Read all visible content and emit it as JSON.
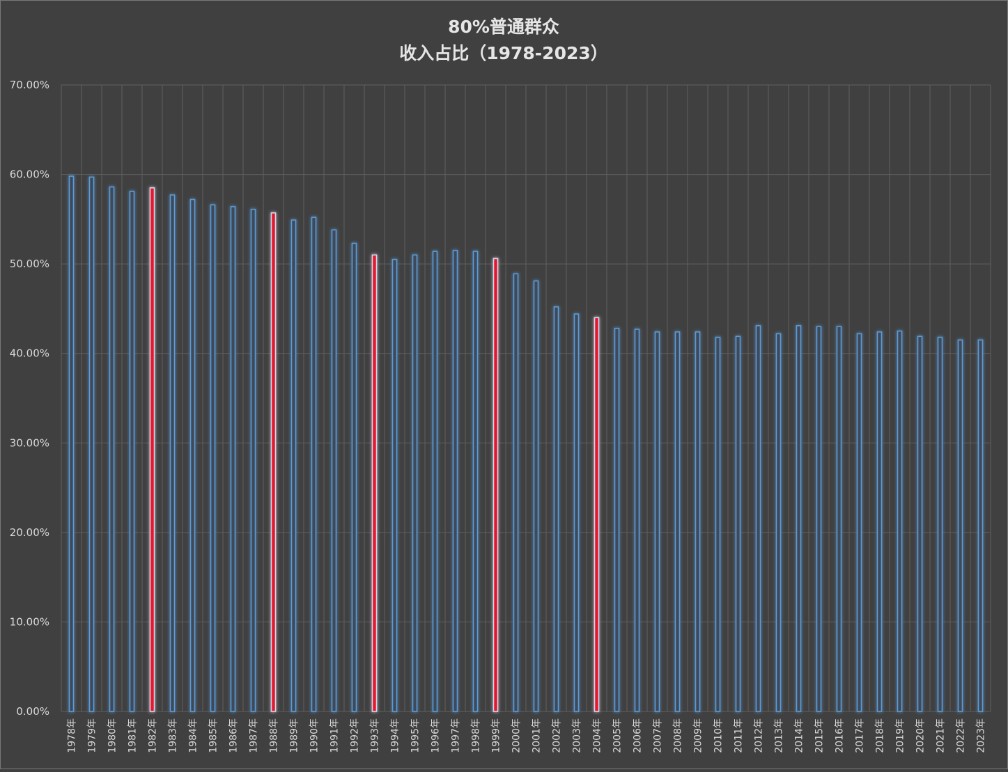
{
  "chart_data": {
    "type": "bar",
    "title": [
      "80%普通群众",
      "收入占比（1978-2023）"
    ],
    "xlabel": "",
    "ylabel": "",
    "ylim": [
      0,
      0.7
    ],
    "yticks": [
      "0.00%",
      "10.00%",
      "20.00%",
      "30.00%",
      "40.00%",
      "50.00%",
      "60.00%",
      "70.00%"
    ],
    "grid": true,
    "legend": "none",
    "categories": [
      "1978年",
      "1979年",
      "1980年",
      "1981年",
      "1982年",
      "1983年",
      "1984年",
      "1985年",
      "1986年",
      "1987年",
      "1988年",
      "1989年",
      "1990年",
      "1991年",
      "1992年",
      "1993年",
      "1994年",
      "1995年",
      "1996年",
      "1997年",
      "1998年",
      "1999年",
      "2000年",
      "2001年",
      "2002年",
      "2003年",
      "2004年",
      "2005年",
      "2006年",
      "2007年",
      "2008年",
      "2009年",
      "2010年",
      "2011年",
      "2012年",
      "2013年",
      "2014年",
      "2015年",
      "2016年",
      "2017年",
      "2018年",
      "2019年",
      "2020年",
      "2021年",
      "2022年",
      "2023年"
    ],
    "values": [
      0.598,
      0.597,
      0.586,
      0.581,
      0.585,
      0.577,
      0.572,
      0.566,
      0.564,
      0.561,
      0.557,
      0.549,
      0.552,
      0.538,
      0.523,
      0.51,
      0.505,
      0.51,
      0.514,
      0.515,
      0.514,
      0.506,
      0.489,
      0.481,
      0.452,
      0.444,
      0.44,
      0.428,
      0.427,
      0.424,
      0.424,
      0.424,
      0.418,
      0.419,
      0.431,
      0.422,
      0.431,
      0.43,
      0.43,
      0.422,
      0.424,
      0.425,
      0.419,
      0.418,
      0.415,
      0.415
    ],
    "highlighted": [
      "1982年",
      "1988年",
      "1993年",
      "1999年",
      "2004年"
    ],
    "colors": {
      "bar": "#4f81bd",
      "bar_fill": "#404a58",
      "bar_glow": "#5b9bd5",
      "highlight": "#e8192c",
      "grid": "#5f5f5f",
      "background": "#404040",
      "text": "#d9d9d9",
      "title": "#e6e6e6"
    }
  }
}
